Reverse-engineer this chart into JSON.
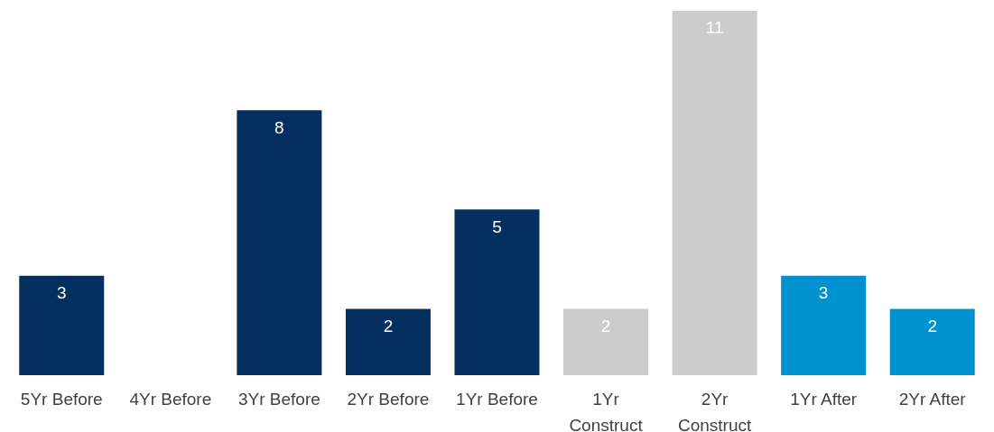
{
  "chart_data": {
    "type": "bar",
    "categories": [
      "5Yr Before",
      "4Yr Before",
      "3Yr Before",
      "2Yr Before",
      "1Yr Before",
      "1Yr Construct",
      "2Yr Construct",
      "1Yr After",
      "2Yr After"
    ],
    "values": [
      3,
      null,
      8,
      2,
      5,
      2,
      11,
      3,
      2
    ],
    "colors": [
      "#052f5f",
      "#052f5f",
      "#052f5f",
      "#052f5f",
      "#052f5f",
      "#cccccc",
      "#cccccc",
      "#0091d0",
      "#0091d0"
    ],
    "data_labels": true,
    "grid": false,
    "legend": false
  }
}
